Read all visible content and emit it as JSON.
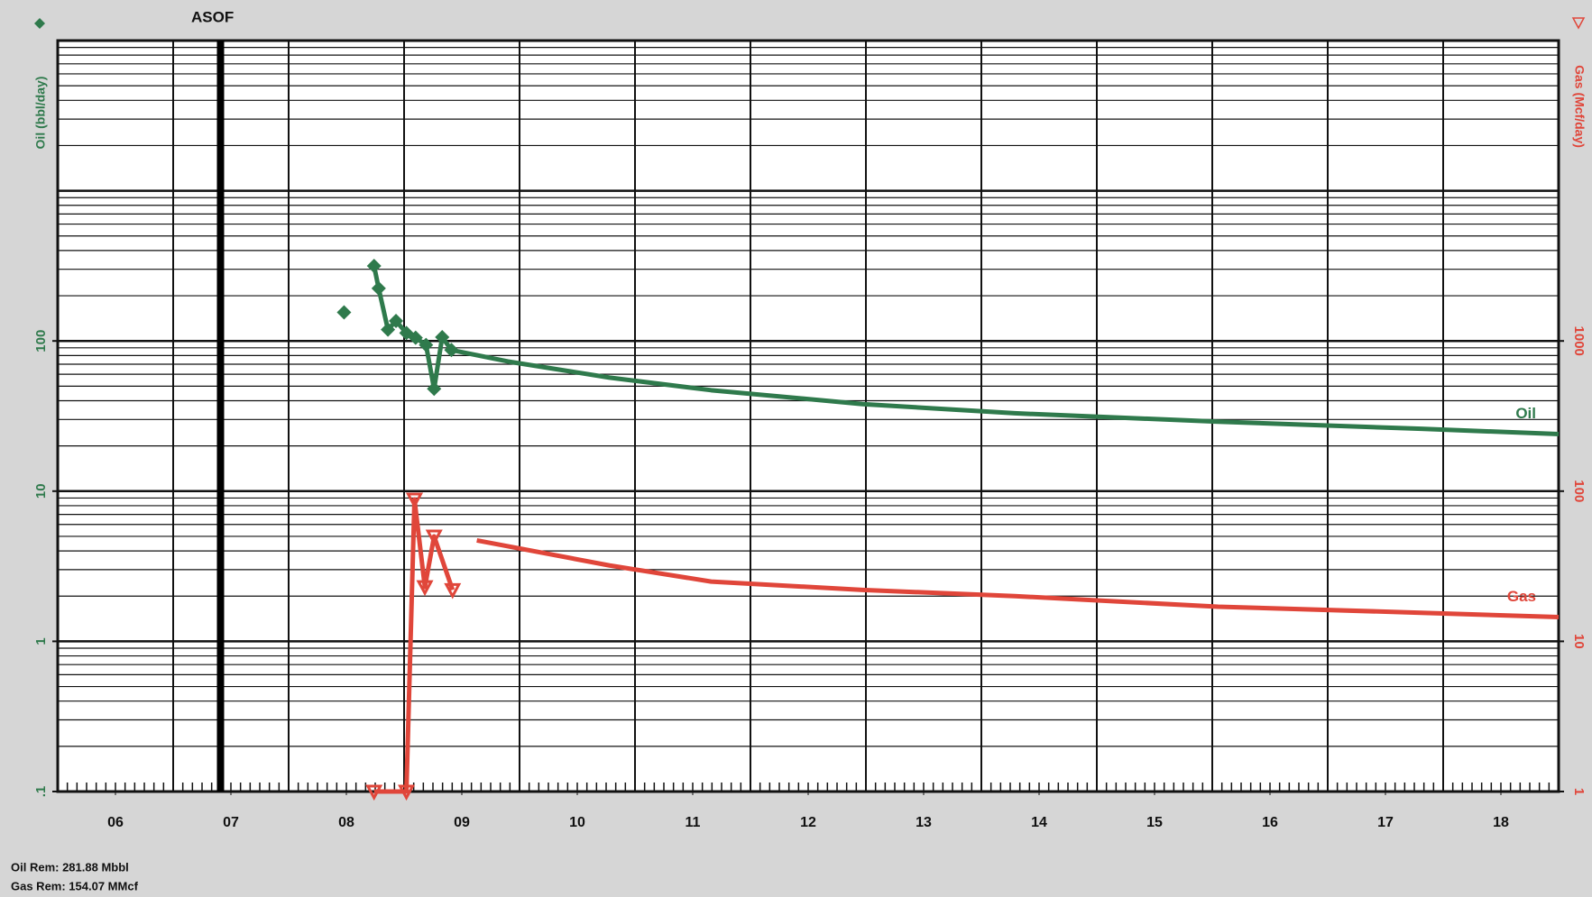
{
  "chart_data": {
    "type": "line",
    "y_title": "Oil (bbl/day)",
    "y2_title": "Gas (Mcf/day)",
    "asof_label": "ASOF",
    "asof_x": 2007.41,
    "xlim": [
      2006,
      2019
    ],
    "xticks": [
      {
        "value": 2006.5,
        "label": "06"
      },
      {
        "value": 2007.5,
        "label": "07"
      },
      {
        "value": 2008.5,
        "label": "08"
      },
      {
        "value": 2009.5,
        "label": "09"
      },
      {
        "value": 2010.5,
        "label": "10"
      },
      {
        "value": 2011.5,
        "label": "11"
      },
      {
        "value": 2012.5,
        "label": "12"
      },
      {
        "value": 2013.5,
        "label": "13"
      },
      {
        "value": 2014.5,
        "label": "14"
      },
      {
        "value": 2015.5,
        "label": "15"
      },
      {
        "value": 2016.5,
        "label": "16"
      },
      {
        "value": 2017.5,
        "label": "17"
      },
      {
        "value": 2018.5,
        "label": "18"
      }
    ],
    "ylim": [
      0.1,
      10000
    ],
    "yticks": [
      {
        "value": 0.1,
        "label": ".1"
      },
      1,
      10,
      100
    ],
    "y2lim": [
      1,
      100000
    ],
    "y2ticks": [
      1,
      10,
      100,
      1000
    ],
    "log_scale": true,
    "grid": true,
    "series": [
      {
        "color": "#2f7a4c",
        "marker": "diamond",
        "line": false,
        "x": [
          2008.48
        ],
        "values": [
          155
        ]
      },
      {
        "color": "#2f7a4c",
        "marker": "diamond",
        "line": true,
        "x": [
          2008.74,
          2008.78,
          2008.86,
          2008.93,
          2009.02,
          2009.1,
          2009.19,
          2009.26,
          2009.33,
          2009.41
        ],
        "values": [
          316,
          224,
          119,
          136,
          113,
          105,
          94,
          48,
          106,
          87
        ]
      },
      {
        "name": "Oil",
        "color": "#2f7a4c",
        "marker": "none",
        "line": true,
        "x": [
          2009.41,
          2009.9,
          2010.78,
          2011.66,
          2012.97,
          2014.29,
          2016.05,
          2017.81,
          2019.0
        ],
        "values": [
          87,
          73,
          57,
          47,
          38,
          33,
          29,
          26,
          24
        ]
      },
      {
        "color": "#e0463a",
        "marker": "triangle",
        "line": true,
        "axis": "y2",
        "x": [
          2008.74,
          2009.02,
          2009.09,
          2009.18,
          2009.26,
          2009.42
        ],
        "values": [
          1,
          1,
          88,
          23,
          50,
          22
        ]
      },
      {
        "name": "Gas",
        "color": "#e0463a",
        "marker": "none",
        "line": true,
        "axis": "y2",
        "x": [
          2009.63,
          2010.78,
          2011.66,
          2012.97,
          2014.29,
          2016.05,
          2017.81,
          2019.0
        ],
        "values": [
          47,
          32,
          25,
          22,
          20,
          17,
          15.5,
          14.5
        ]
      }
    ],
    "footer": [
      "Oil Rem: 281.88 Mbbl",
      "Gas Rem: 154.07 MMcf"
    ]
  }
}
